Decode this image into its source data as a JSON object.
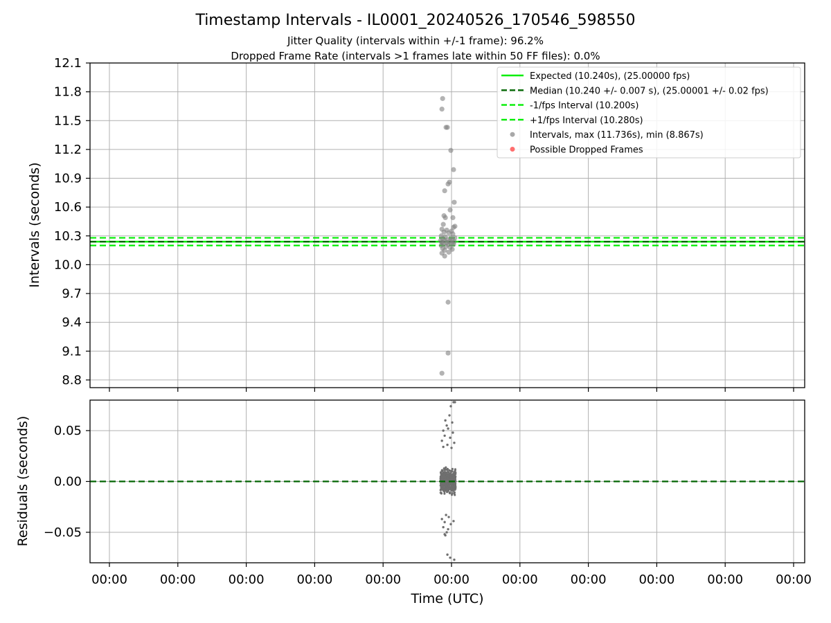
{
  "figure": {
    "title": "Timestamp Intervals - IL0001_20240526_170546_598550",
    "subtitle_line1": "Jitter Quality (intervals within +/-1 frame): 96.2%",
    "subtitle_line2": "Dropped Frame Rate (intervals >1 frames late within 50 FF files): 0.0%"
  },
  "colors": {
    "expected": "#00ee00",
    "median": "#006400",
    "bounds": "#00ee00",
    "points": "#808080",
    "dropped": "#ff0000",
    "grid": "#b0b0b0"
  },
  "chart_data": [
    {
      "type": "scatter",
      "ylabel": "Intervals (seconds)",
      "xlabel": "",
      "ylim": [
        8.72,
        12.1
      ],
      "yticks": [
        "8.8",
        "9.1",
        "9.4",
        "9.7",
        "10.0",
        "10.3",
        "10.6",
        "10.9",
        "11.2",
        "11.5",
        "11.8",
        "12.1"
      ],
      "xticks": [
        "00:00",
        "00:00",
        "00:00",
        "00:00",
        "00:00",
        "00:00",
        "00:00",
        "00:00",
        "00:00",
        "00:00",
        "00:00"
      ],
      "grid": true,
      "legend_position": "top-right",
      "legend": [
        {
          "label": "Expected (10.240s), (25.00000 fps)",
          "style": "solid",
          "color": "#00ee00"
        },
        {
          "label": "Median (10.240 +/- 0.007 s), (25.00001 +/- 0.02 fps)",
          "style": "dashed",
          "color": "#006400"
        },
        {
          "label": "-1/fps Interval (10.200s)",
          "style": "dashed",
          "color": "#00ee00"
        },
        {
          "label": "+1/fps Interval (10.280s)",
          "style": "dashed",
          "color": "#00ee00"
        },
        {
          "label": "Intervals, max (11.736s), min (8.867s)",
          "style": "marker",
          "color": "#999999"
        },
        {
          "label": "Possible Dropped Frames",
          "style": "marker",
          "color": "#ff5555"
        }
      ],
      "lines": [
        {
          "name": "Expected",
          "y": 10.24,
          "style": "solid",
          "color": "#00ee00"
        },
        {
          "name": "Median",
          "y": 10.24,
          "style": "dashed",
          "color": "#006400"
        },
        {
          "name": "-1/fps Interval",
          "y": 10.2,
          "style": "dashed",
          "color": "#00ee00"
        },
        {
          "name": "+1/fps Interval",
          "y": 10.28,
          "style": "dashed",
          "color": "#00ee00"
        }
      ],
      "series": [
        {
          "name": "Intervals",
          "points": [
            {
              "x": 4.87,
              "y": 11.73
            },
            {
              "x": 4.86,
              "y": 11.62
            },
            {
              "x": 4.92,
              "y": 11.43
            },
            {
              "x": 4.94,
              "y": 11.43
            },
            {
              "x": 4.99,
              "y": 11.19
            },
            {
              "x": 5.03,
              "y": 10.99
            },
            {
              "x": 4.97,
              "y": 10.86
            },
            {
              "x": 4.95,
              "y": 10.84
            },
            {
              "x": 4.9,
              "y": 10.77
            },
            {
              "x": 5.04,
              "y": 10.65
            },
            {
              "x": 4.98,
              "y": 10.57
            },
            {
              "x": 4.89,
              "y": 10.51
            },
            {
              "x": 4.91,
              "y": 10.49
            },
            {
              "x": 5.02,
              "y": 10.49
            },
            {
              "x": 4.88,
              "y": 10.42
            },
            {
              "x": 5.05,
              "y": 10.4
            },
            {
              "x": 5.03,
              "y": 10.39
            },
            {
              "x": 4.86,
              "y": 10.37
            },
            {
              "x": 4.93,
              "y": 10.36
            },
            {
              "x": 5.0,
              "y": 10.35
            },
            {
              "x": 4.89,
              "y": 10.34
            },
            {
              "x": 4.96,
              "y": 10.33
            },
            {
              "x": 5.02,
              "y": 10.32
            },
            {
              "x": 4.85,
              "y": 10.3
            },
            {
              "x": 4.91,
              "y": 10.29
            },
            {
              "x": 4.99,
              "y": 10.28
            },
            {
              "x": 5.05,
              "y": 10.28
            },
            {
              "x": 4.87,
              "y": 10.27
            },
            {
              "x": 4.94,
              "y": 10.26
            },
            {
              "x": 5.01,
              "y": 10.26
            },
            {
              "x": 4.84,
              "y": 10.25
            },
            {
              "x": 4.9,
              "y": 10.25
            },
            {
              "x": 4.97,
              "y": 10.24
            },
            {
              "x": 5.04,
              "y": 10.24
            },
            {
              "x": 4.86,
              "y": 10.23
            },
            {
              "x": 4.93,
              "y": 10.23
            },
            {
              "x": 5.0,
              "y": 10.22
            },
            {
              "x": 4.88,
              "y": 10.22
            },
            {
              "x": 4.95,
              "y": 10.21
            },
            {
              "x": 5.03,
              "y": 10.21
            },
            {
              "x": 4.85,
              "y": 10.2
            },
            {
              "x": 4.92,
              "y": 10.19
            },
            {
              "x": 4.98,
              "y": 10.18
            },
            {
              "x": 4.87,
              "y": 10.17
            },
            {
              "x": 5.01,
              "y": 10.16
            },
            {
              "x": 4.9,
              "y": 10.15
            },
            {
              "x": 4.96,
              "y": 10.13
            },
            {
              "x": 4.86,
              "y": 10.12
            },
            {
              "x": 4.9,
              "y": 10.09
            },
            {
              "x": 4.95,
              "y": 9.61
            },
            {
              "x": 4.95,
              "y": 9.08
            },
            {
              "x": 4.86,
              "y": 8.87
            }
          ]
        }
      ]
    },
    {
      "type": "scatter",
      "ylabel": "Residuals (seconds)",
      "xlabel": "Time (UTC)",
      "ylim": [
        -0.08,
        0.08
      ],
      "yticks": [
        "−0.05",
        "0.00",
        "0.05"
      ],
      "xticks": [
        "00:00",
        "00:00",
        "00:00",
        "00:00",
        "00:00",
        "00:00",
        "00:00",
        "00:00",
        "00:00",
        "00:00",
        "00:00"
      ],
      "grid": true,
      "lines": [
        {
          "name": "Median",
          "y": 0.0,
          "style": "dashed",
          "color": "#006400"
        }
      ],
      "series": [
        {
          "name": "Residuals",
          "x_range": [
            4.84,
            5.06
          ],
          "core_band": [
            -0.03,
            0.03
          ],
          "core_count": 520,
          "outliers": [
            {
              "x": 5.03,
              "y": 0.078
            },
            {
              "x": 5.05,
              "y": 0.078
            },
            {
              "x": 4.99,
              "y": 0.074
            },
            {
              "x": 4.97,
              "y": 0.065
            },
            {
              "x": 4.91,
              "y": 0.06
            },
            {
              "x": 5.01,
              "y": 0.058
            },
            {
              "x": 4.93,
              "y": 0.055
            },
            {
              "x": 4.95,
              "y": 0.052
            },
            {
              "x": 4.88,
              "y": 0.05
            },
            {
              "x": 5.02,
              "y": 0.048
            },
            {
              "x": 4.9,
              "y": 0.045
            },
            {
              "x": 4.98,
              "y": 0.043
            },
            {
              "x": 4.86,
              "y": 0.04
            },
            {
              "x": 5.04,
              "y": 0.038
            },
            {
              "x": 4.94,
              "y": 0.036
            },
            {
              "x": 4.88,
              "y": 0.034
            },
            {
              "x": 5.0,
              "y": 0.033
            },
            {
              "x": 4.92,
              "y": -0.033
            },
            {
              "x": 4.96,
              "y": -0.035
            },
            {
              "x": 4.86,
              "y": -0.037
            },
            {
              "x": 5.03,
              "y": -0.039
            },
            {
              "x": 4.9,
              "y": -0.04
            },
            {
              "x": 4.99,
              "y": -0.042
            },
            {
              "x": 4.88,
              "y": -0.045
            },
            {
              "x": 4.95,
              "y": -0.047
            },
            {
              "x": 4.93,
              "y": -0.05
            },
            {
              "x": 4.9,
              "y": -0.052
            },
            {
              "x": 4.91,
              "y": -0.053
            },
            {
              "x": 4.94,
              "y": -0.072
            },
            {
              "x": 4.98,
              "y": -0.075
            },
            {
              "x": 5.04,
              "y": -0.077
            }
          ]
        }
      ]
    }
  ]
}
